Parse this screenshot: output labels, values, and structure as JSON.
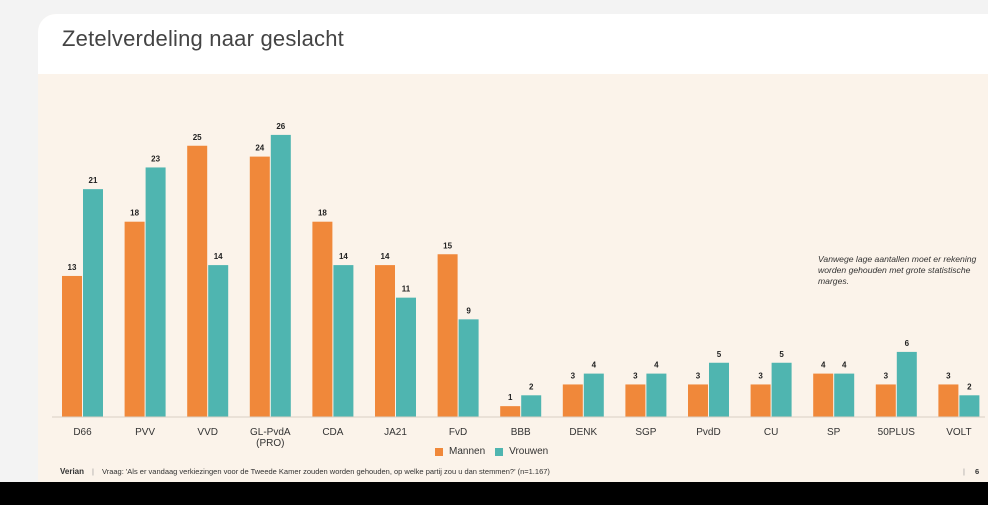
{
  "title": "Zetelverdeling naar geslacht",
  "note": "Vanwege lage aantallen moet er rekening worden gehouden met grote statistische marges.",
  "footer": {
    "brand": "Verian",
    "question": "Vraag: 'Als er vandaag verkiezingen voor de Tweede Kamer zouden worden gehouden, op welke partij zou u dan stemmen?' (n=1.167)",
    "page_marker": "6"
  },
  "colors": {
    "mannen": "#f0883a",
    "vrouwen": "#4fb5b0"
  },
  "chart_data": {
    "type": "bar",
    "title": "Zetelverdeling naar geslacht",
    "categories": [
      [
        "D66"
      ],
      [
        "PVV"
      ],
      [
        "VVD"
      ],
      [
        "GL-PvdA",
        "(PRO)"
      ],
      [
        "CDA"
      ],
      [
        "JA21"
      ],
      [
        "FvD"
      ],
      [
        "BBB"
      ],
      [
        "DENK"
      ],
      [
        "SGP"
      ],
      [
        "PvdD"
      ],
      [
        "CU"
      ],
      [
        "SP"
      ],
      [
        "50PLUS"
      ],
      [
        "VOLT"
      ]
    ],
    "series": [
      {
        "name": "Mannen",
        "values": [
          13,
          18,
          25,
          24,
          18,
          14,
          15,
          1,
          3,
          3,
          3,
          3,
          4,
          3,
          3
        ]
      },
      {
        "name": "Vrouwen",
        "values": [
          21,
          23,
          14,
          26,
          14,
          11,
          9,
          2,
          4,
          4,
          5,
          5,
          4,
          6,
          2
        ]
      }
    ],
    "ylim": [
      0,
      26
    ],
    "grid": false,
    "legend_position": "bottom-center"
  }
}
